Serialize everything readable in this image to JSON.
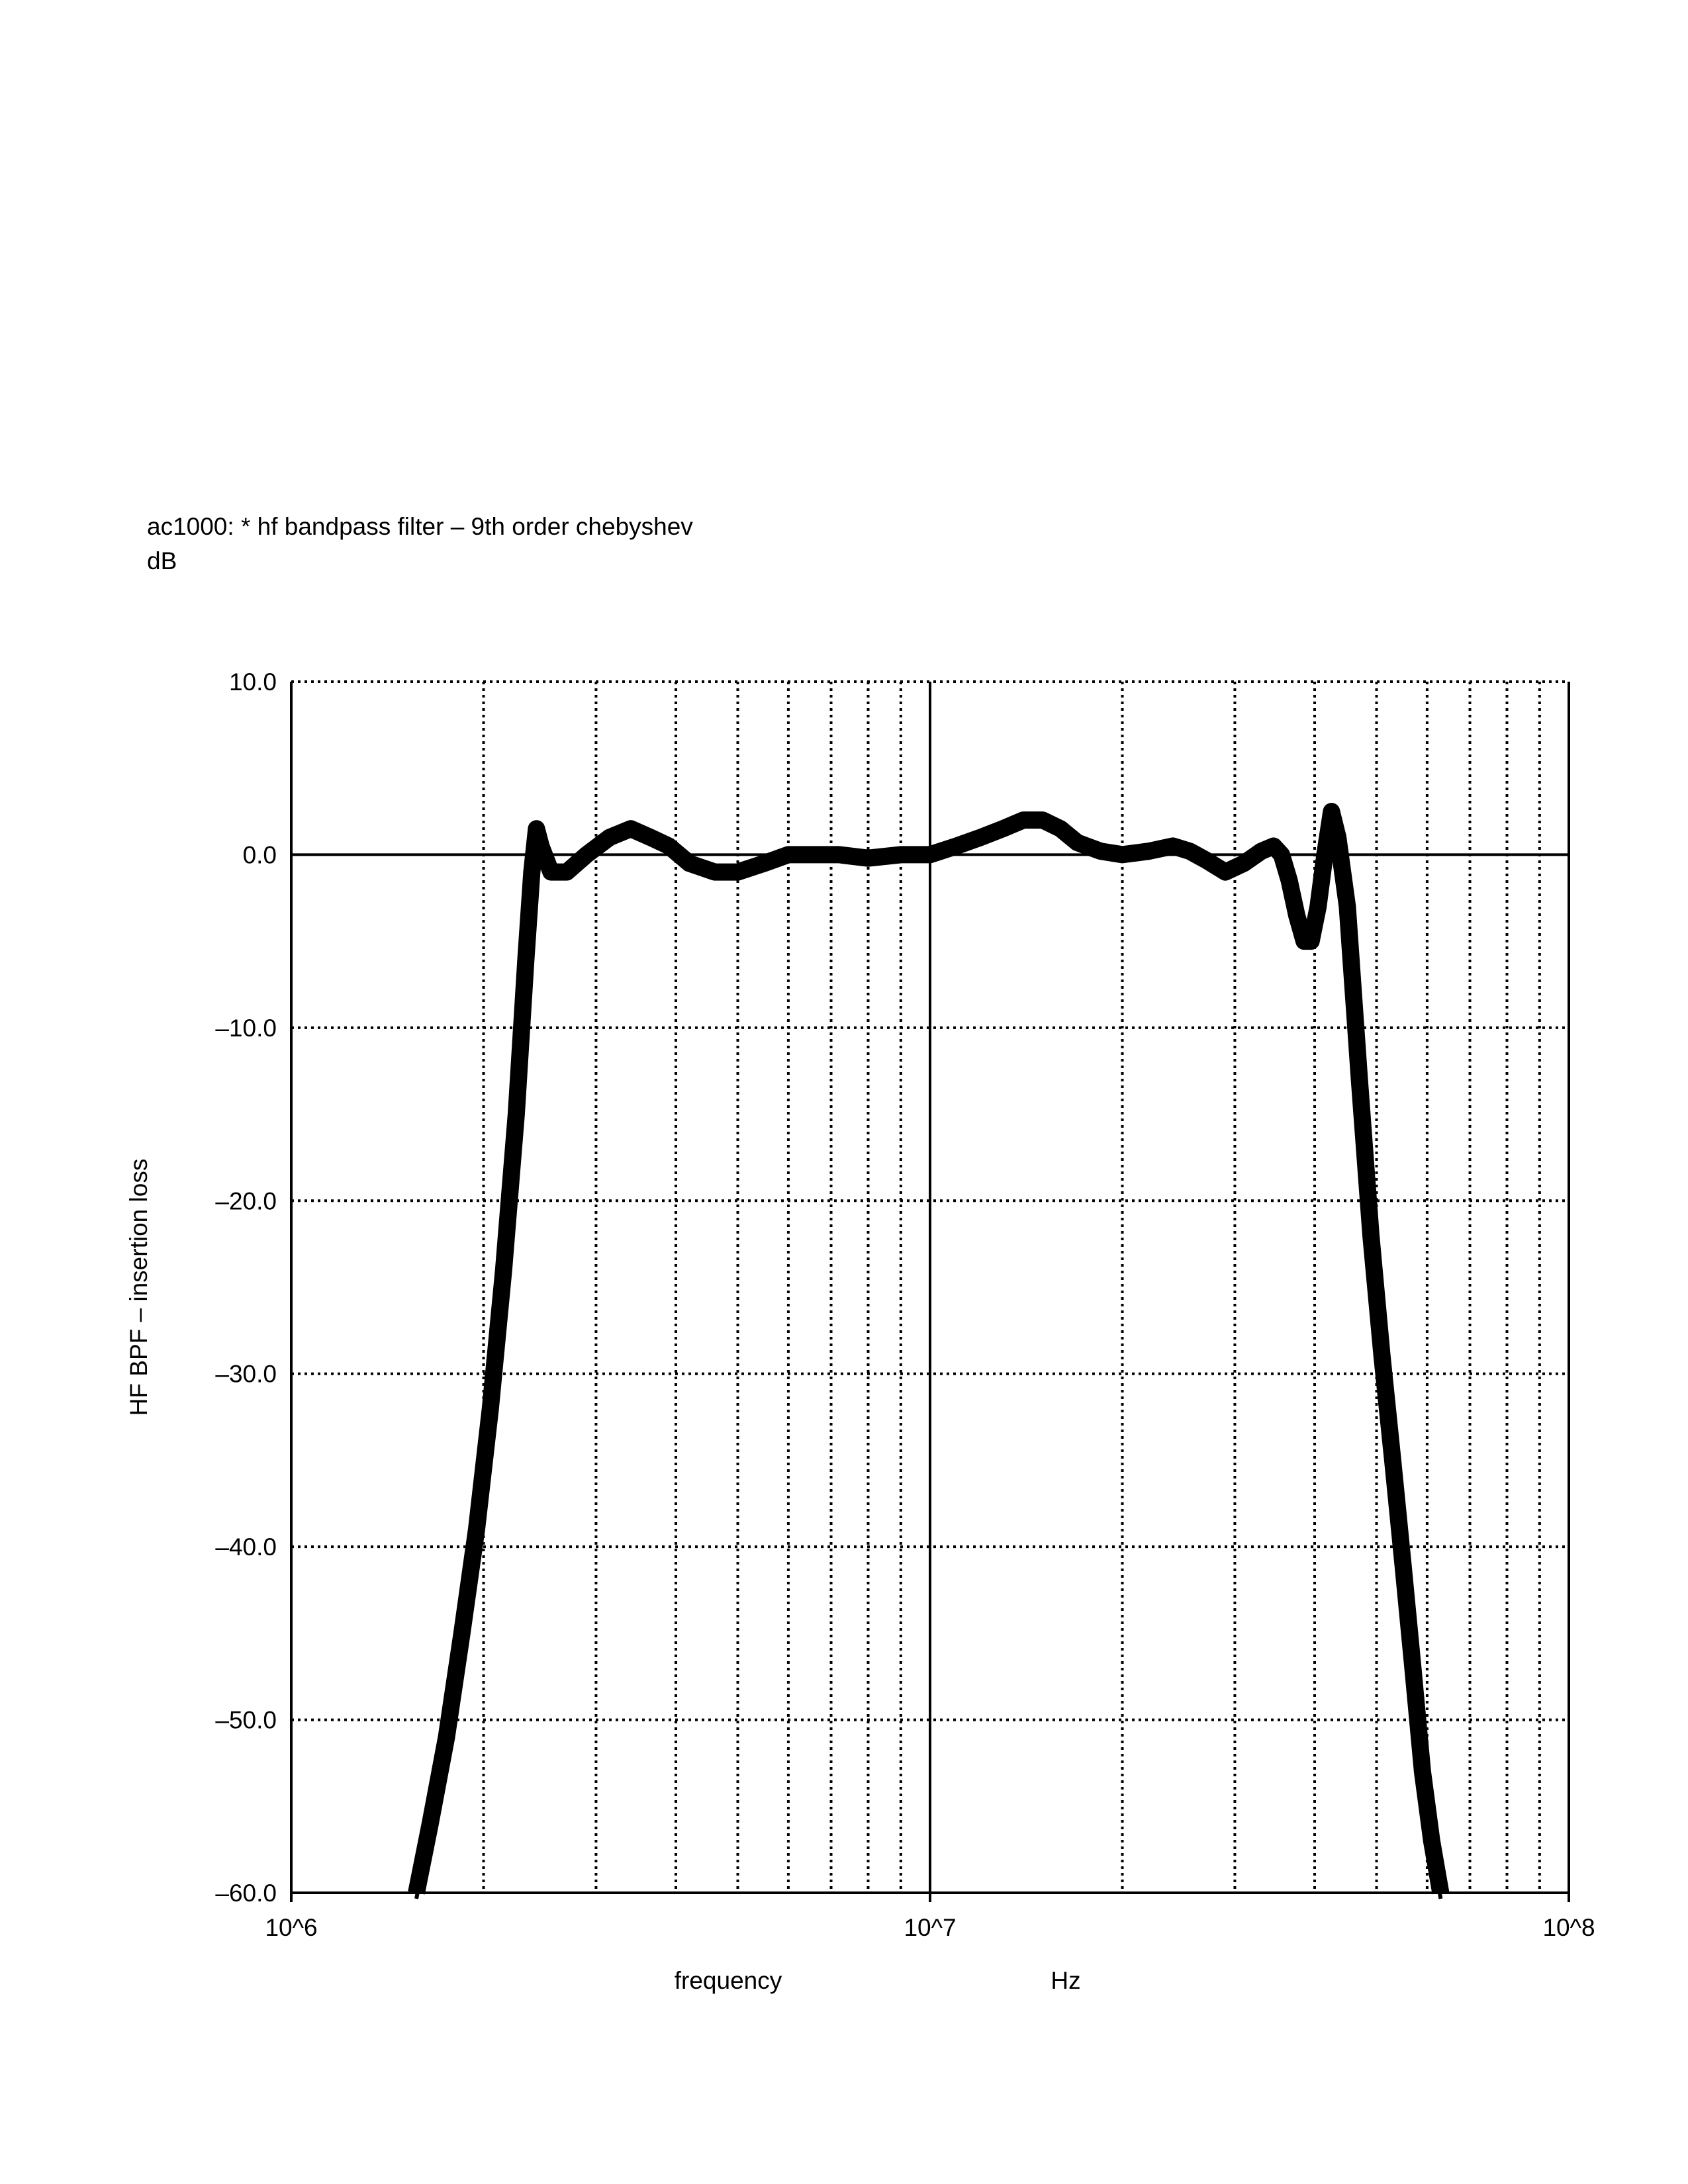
{
  "chart_data": {
    "type": "line",
    "title": "ac1000: * hf bandpass filter – 9th order chebyshev",
    "subtitle": "dB",
    "ylabel": "HF BPF – insertion loss",
    "xlabel": "frequency",
    "xunit": "Hz",
    "xscale": "log",
    "xlim": [
      1000000,
      100000000
    ],
    "ylim": [
      -60,
      10
    ],
    "xtick_labels": [
      "10^6",
      "10^7",
      "10^8"
    ],
    "ytick_values": [
      10,
      0,
      -10,
      -20,
      -30,
      -40,
      -50,
      -60
    ],
    "ytick_labels": [
      "10.0",
      "0.0",
      "–10.0",
      "–20.0",
      "–30.0",
      "–40.0",
      "–50.0",
      "–60.0"
    ],
    "grid": true,
    "grid_style": "dotted",
    "note": "Monte Carlo overlay of many runs drawn as a thick band",
    "series": [
      {
        "x": [
          1570000,
          1650000,
          1750000,
          1850000,
          1950000,
          2050000,
          2150000,
          2250000,
          2330000,
          2380000,
          2420000,
          2460000,
          2550000,
          2700000,
          2900000,
          3150000,
          3400000,
          3650000,
          3900000,
          4200000,
          4600000,
          5000000,
          5500000,
          6000000,
          6600000,
          7200000,
          8000000,
          9000000,
          10000000,
          11000000,
          12000000,
          13000000,
          14000000,
          15000000,
          16000000,
          17000000,
          18500000,
          20000000,
          22000000,
          24000000,
          25500000,
          27000000,
          29000000,
          31000000,
          33000000,
          34500000,
          35500000,
          36500000,
          37500000,
          38500000,
          39500000,
          40500000,
          41500000,
          42500000,
          43500000,
          45000000,
          47000000,
          49000000,
          51000000,
          53000000,
          55000000,
          57000000,
          59000000,
          61000000,
          63000000
        ],
        "values": [
          -60,
          -56,
          -51,
          -45,
          -39,
          -32,
          -24,
          -15,
          -6,
          -1,
          1.5,
          0.5,
          -1,
          -1,
          0,
          1,
          1.5,
          1,
          0.5,
          -0.5,
          -1,
          -1,
          -0.5,
          0,
          0,
          0,
          -0.2,
          0,
          0,
          0.5,
          1,
          1.5,
          2,
          2,
          1.5,
          0.7,
          0.2,
          0,
          0.2,
          0.5,
          0.2,
          -0.3,
          -1,
          -0.5,
          0.2,
          0.5,
          0,
          -1.5,
          -3.5,
          -5,
          -5,
          -3,
          0,
          2.5,
          1,
          -3,
          -13,
          -22,
          -29,
          -35,
          -41,
          -47,
          -53,
          -57,
          -60
        ]
      }
    ]
  }
}
